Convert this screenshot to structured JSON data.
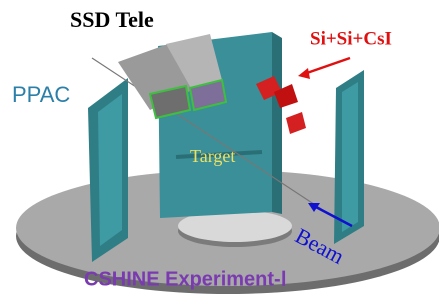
{
  "labels": {
    "telescope": "SSD Tele",
    "detector": "Si+Si+CsI",
    "ppac": "PPAC",
    "target": "Target",
    "beam": "Beam",
    "caption": "CSHINE Experiment-Ⅰ"
  }
}
